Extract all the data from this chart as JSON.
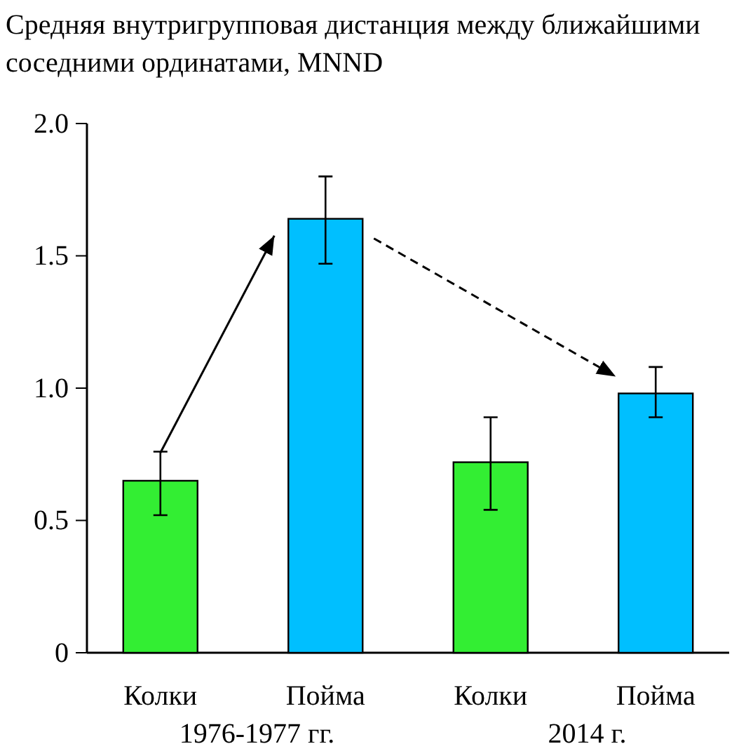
{
  "chart_data": {
    "type": "bar",
    "title": "Средняя внутригрупповая дистанция между ближайшими соседними ординатами, MNND",
    "categories": [
      "Колки",
      "Пойма",
      "Колки",
      "Пойма"
    ],
    "values": [
      0.65,
      1.64,
      0.72,
      0.98
    ],
    "colors": [
      "#33ee33",
      "#00bfff",
      "#33ee33",
      "#00bfff"
    ],
    "errors": [
      [
        0.52,
        0.76
      ],
      [
        1.47,
        1.8
      ],
      [
        0.54,
        0.89
      ],
      [
        0.89,
        1.08
      ]
    ],
    "ylim": [
      0,
      2
    ],
    "yticks": [
      {
        "value": 0,
        "label": "0"
      },
      {
        "value": 0.5,
        "label": "0.5"
      },
      {
        "value": 1,
        "label": "1.0"
      },
      {
        "value": 1.5,
        "label": "1.5"
      },
      {
        "value": 2,
        "label": "2.0"
      }
    ],
    "annotations": [
      "1976-1977 гг.",
      "2014 г."
    ]
  }
}
